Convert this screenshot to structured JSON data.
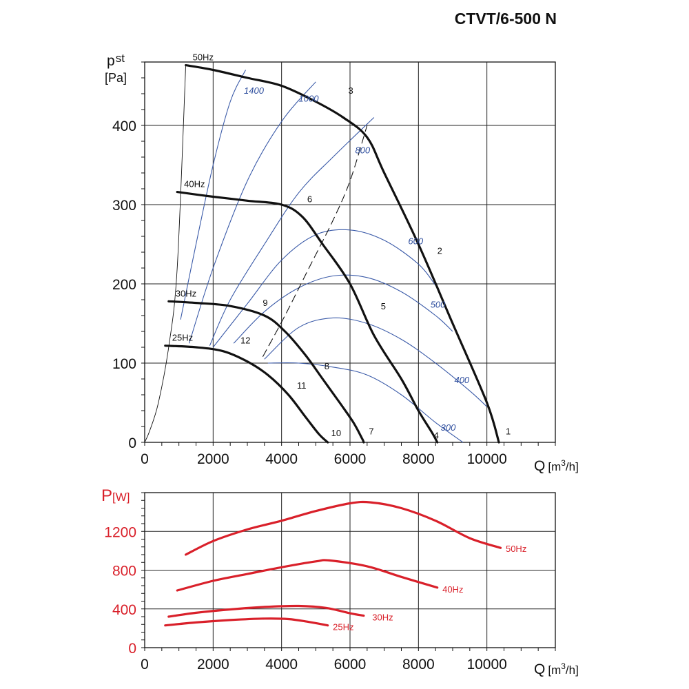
{
  "title": "CTVT/6-500 N",
  "chart_data": [
    {
      "type": "line",
      "name": "pressure",
      "ylabel_main": "p",
      "ylabel_sub": "st",
      "ylabel_unit": "[Pa]",
      "xlabel_main": "Q",
      "xlabel_unit_pre": "[m",
      "xlabel_unit_sup": "3",
      "xlabel_unit_post": "/h]",
      "xlim": [
        0,
        12000
      ],
      "ylim": [
        0,
        480
      ],
      "xticks": [
        0,
        2000,
        4000,
        6000,
        8000,
        10000
      ],
      "yticks": [
        0,
        100,
        200,
        300,
        400
      ],
      "xtick_labels": [
        "0",
        "2000",
        "4000",
        "6000",
        "8000",
        "10000"
      ],
      "ytick_labels": [
        "0",
        "100",
        "200",
        "300",
        "400"
      ],
      "grid": true,
      "series": [
        {
          "name": "50Hz",
          "x": [
            1200,
            2000,
            3000,
            4000,
            5000,
            5800,
            6500,
            7000,
            8000,
            9000,
            10000,
            10350
          ],
          "y": [
            476,
            470,
            460,
            450,
            430,
            410,
            385,
            340,
            250,
            150,
            50,
            0
          ]
        },
        {
          "name": "40Hz",
          "x": [
            950,
            2000,
            3000,
            4000,
            4600,
            5200,
            6000,
            6700,
            7500,
            8000,
            8400,
            8550
          ],
          "y": [
            316,
            310,
            305,
            300,
            285,
            250,
            200,
            135,
            80,
            40,
            12,
            0
          ]
        },
        {
          "name": "30Hz",
          "x": [
            700,
            1500,
            2500,
            3500,
            4100,
            4700,
            5200,
            5700,
            6100,
            6350,
            6400
          ],
          "y": [
            178,
            176,
            172,
            160,
            140,
            110,
            80,
            50,
            25,
            5,
            0
          ]
        },
        {
          "name": "25Hz",
          "x": [
            600,
            1500,
            2300,
            3000,
            3600,
            4200,
            4700,
            5100,
            5350
          ],
          "y": [
            122,
            120,
            115,
            102,
            85,
            60,
            32,
            10,
            0
          ]
        }
      ],
      "system_curve": {
        "x": [
          3450,
          4100,
          4800,
          5500,
          6000,
          6500
        ],
        "y": [
          108,
          160,
          220,
          280,
          330,
          400
        ]
      },
      "min_flow_line": {
        "x": [
          0,
          150,
          400,
          700,
          950,
          1200
        ],
        "y": [
          0,
          15,
          50,
          120,
          220,
          476
        ]
      },
      "rpm_curves": [
        {
          "label": "1400",
          "x": [
            1050,
            1500,
            2000,
            2500,
            2950
          ],
          "y": [
            155,
            250,
            350,
            430,
            470
          ]
        },
        {
          "label": "1000",
          "x": [
            1300,
            2000,
            3000,
            4000,
            5000
          ],
          "y": [
            125,
            220,
            330,
            405,
            455
          ]
        },
        {
          "label": "800",
          "x": [
            1900,
            2500,
            3500,
            4500,
            5500,
            6700
          ],
          "y": [
            122,
            180,
            250,
            315,
            360,
            410
          ]
        },
        {
          "label": "600",
          "x": [
            2000,
            3000,
            4000,
            5000,
            6000,
            7000,
            8000,
            8500
          ],
          "y": [
            120,
            175,
            230,
            262,
            268,
            255,
            225,
            198
          ]
        },
        {
          "label": "500",
          "x": [
            2600,
            3500,
            4500,
            5500,
            6500,
            7500,
            8500,
            9000
          ],
          "y": [
            125,
            165,
            195,
            210,
            208,
            190,
            160,
            140
          ]
        },
        {
          "label": "400",
          "x": [
            3500,
            4500,
            5500,
            6500,
            7500,
            8500,
            9500,
            10000
          ],
          "y": [
            105,
            145,
            157,
            150,
            130,
            100,
            65,
            45
          ]
        },
        {
          "label": "300",
          "x": [
            3600,
            4500,
            5500,
            6500,
            7500,
            8500,
            9300
          ],
          "y": [
            100,
            100,
            95,
            85,
            60,
            25,
            0
          ]
        }
      ],
      "point_labels": [
        {
          "label": "1",
          "x": 10550,
          "y": 10
        },
        {
          "label": "2",
          "x": 8550,
          "y": 238
        },
        {
          "label": "3",
          "x": 5950,
          "y": 440
        },
        {
          "label": "4",
          "x": 8450,
          "y": 5
        },
        {
          "label": "5",
          "x": 6900,
          "y": 168
        },
        {
          "label": "6",
          "x": 4750,
          "y": 303
        },
        {
          "label": "7",
          "x": 6550,
          "y": 10
        },
        {
          "label": "8",
          "x": 5250,
          "y": 92
        },
        {
          "label": "9",
          "x": 3450,
          "y": 172
        },
        {
          "label": "10",
          "x": 5450,
          "y": 8
        },
        {
          "label": "11",
          "x": 4450,
          "y": 68
        },
        {
          "label": "12",
          "x": 2800,
          "y": 125
        }
      ],
      "rpm_label_positions": [
        {
          "label": "1400",
          "x": 2900,
          "y": 440
        },
        {
          "label": "1000",
          "x": 4500,
          "y": 430
        },
        {
          "label": "800",
          "x": 6150,
          "y": 365
        },
        {
          "label": "600",
          "x": 7700,
          "y": 250
        },
        {
          "label": "500",
          "x": 8350,
          "y": 170
        },
        {
          "label": "400",
          "x": 9050,
          "y": 75
        },
        {
          "label": "300",
          "x": 8650,
          "y": 15
        }
      ]
    },
    {
      "type": "line",
      "name": "power",
      "ylabel_main": "P",
      "ylabel_unit": "[W]",
      "xlabel_main": "Q",
      "xlabel_unit_pre": "[m",
      "xlabel_unit_sup": "3",
      "xlabel_unit_post": "/h]",
      "xlim": [
        0,
        12000
      ],
      "ylim": [
        0,
        1600
      ],
      "xticks": [
        0,
        2000,
        4000,
        6000,
        8000,
        10000
      ],
      "yticks": [
        0,
        400,
        800,
        1200
      ],
      "xtick_labels": [
        "0",
        "2000",
        "4000",
        "6000",
        "8000",
        "10000"
      ],
      "ytick_labels": [
        "0",
        "400",
        "800",
        "1200"
      ],
      "grid": true,
      "series": [
        {
          "name": "50Hz",
          "x": [
            1200,
            2000,
            3000,
            4000,
            5000,
            6000,
            6600,
            7500,
            8500,
            9500,
            10400
          ],
          "y": [
            960,
            1100,
            1220,
            1310,
            1410,
            1490,
            1500,
            1440,
            1310,
            1130,
            1030
          ]
        },
        {
          "name": "40Hz",
          "x": [
            950,
            2000,
            3000,
            4000,
            5000,
            5400,
            6500,
            7500,
            8550
          ],
          "y": [
            590,
            690,
            760,
            830,
            890,
            900,
            840,
            730,
            620
          ]
        },
        {
          "name": "30Hz",
          "x": [
            700,
            1500,
            2500,
            3500,
            4500,
            5300,
            6000,
            6400
          ],
          "y": [
            320,
            360,
            395,
            420,
            430,
            410,
            355,
            330
          ]
        },
        {
          "name": "25Hz",
          "x": [
            600,
            1500,
            2500,
            3500,
            4200,
            4800,
            5350
          ],
          "y": [
            230,
            260,
            285,
            300,
            295,
            265,
            230
          ]
        }
      ],
      "series_label_positions": [
        {
          "label": "50Hz",
          "x": 10550,
          "y": 990
        },
        {
          "label": "40Hz",
          "x": 8700,
          "y": 570
        },
        {
          "label": "30Hz",
          "x": 6650,
          "y": 280
        },
        {
          "label": "25Hz",
          "x": 5500,
          "y": 180
        }
      ]
    }
  ]
}
